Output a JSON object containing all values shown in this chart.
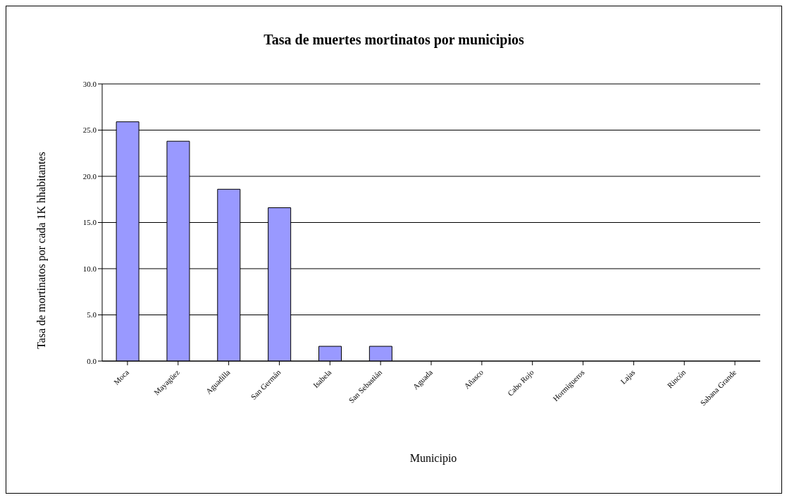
{
  "chart_data": {
    "type": "bar",
    "title": "Tasa de muertes mortinatos por municipios",
    "xlabel": "Municipio",
    "ylabel": "Tasa de mortinatos por cada 1K  hhabitantes",
    "categories": [
      "Moca",
      "Mayagüez",
      "Aguadilla",
      "San Germán",
      "Isabela",
      "San Sebastián",
      "Aguada",
      "Añasco",
      "Cabo Rojo",
      "Hormigueros",
      "Lajas",
      "Rincón",
      "Sabana Grande"
    ],
    "values": [
      25.9,
      23.8,
      18.6,
      16.6,
      1.6,
      1.6,
      0,
      0,
      0,
      0,
      0,
      0,
      0
    ],
    "color": "#9999ff",
    "ylim": [
      0,
      30
    ],
    "yticks": [
      {
        "value": 0,
        "label": "0.0"
      },
      {
        "value": 5,
        "label": "5.0"
      },
      {
        "value": 10,
        "label": "10.0"
      },
      {
        "value": 15,
        "label": "15.0"
      },
      {
        "value": 20,
        "label": "20.0"
      },
      {
        "value": 25,
        "label": "25.0"
      },
      {
        "value": 30,
        "label": "30.0"
      }
    ],
    "grid": "y",
    "legend": false
  }
}
